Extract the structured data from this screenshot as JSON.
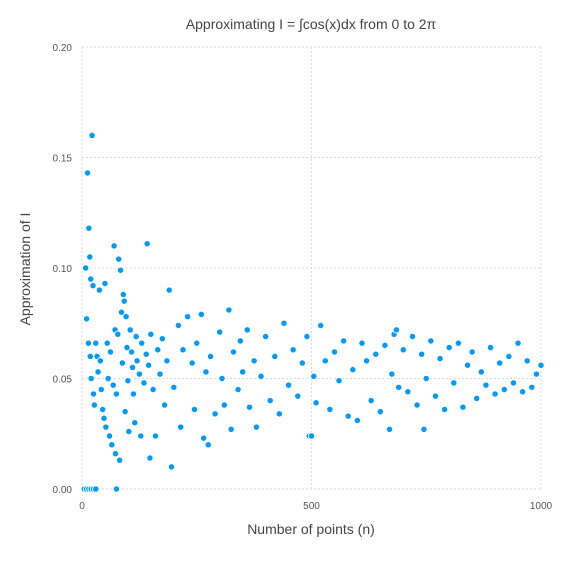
{
  "chart_data": {
    "type": "scatter",
    "title": "Approximating I = ∫cos(x)dx from 0 to 2π",
    "xlabel": "Number of points (n)",
    "ylabel": "Approximation of I",
    "xlim": [
      0,
      1000
    ],
    "ylim": [
      0,
      0.2
    ],
    "x_ticks": [
      0,
      500,
      1000
    ],
    "y_ticks": [
      0.0,
      0.05,
      0.1,
      0.15,
      0.2
    ],
    "x_tick_labels": [
      "0",
      "500",
      "1000"
    ],
    "y_tick_labels": [
      "0.00",
      "0.05",
      "0.10",
      "0.15",
      "0.20"
    ],
    "grid": true,
    "legend": "none",
    "point_color": "#009af9",
    "series": [
      {
        "points": [
          [
            5,
            0.0
          ],
          [
            10,
            0.0
          ],
          [
            15,
            0.0
          ],
          [
            20,
            0.0
          ],
          [
            25,
            0.0
          ],
          [
            30,
            0.0
          ],
          [
            75,
            0.0
          ],
          [
            8,
            0.1
          ],
          [
            12,
            0.143
          ],
          [
            15,
            0.118
          ],
          [
            17,
            0.105
          ],
          [
            19,
            0.095
          ],
          [
            22,
            0.16
          ],
          [
            24,
            0.092
          ],
          [
            10,
            0.077
          ],
          [
            14,
            0.066
          ],
          [
            18,
            0.06
          ],
          [
            20,
            0.05
          ],
          [
            25,
            0.043
          ],
          [
            27,
            0.038
          ],
          [
            30,
            0.066
          ],
          [
            33,
            0.06
          ],
          [
            35,
            0.053
          ],
          [
            38,
            0.09
          ],
          [
            40,
            0.058
          ],
          [
            42,
            0.045
          ],
          [
            45,
            0.036
          ],
          [
            48,
            0.032
          ],
          [
            50,
            0.093
          ],
          [
            52,
            0.028
          ],
          [
            55,
            0.066
          ],
          [
            57,
            0.05
          ],
          [
            60,
            0.024
          ],
          [
            62,
            0.062
          ],
          [
            65,
            0.02
          ],
          [
            68,
            0.047
          ],
          [
            70,
            0.11
          ],
          [
            72,
            0.072
          ],
          [
            73,
            0.016
          ],
          [
            75,
            0.043
          ],
          [
            78,
            0.07
          ],
          [
            80,
            0.104
          ],
          [
            82,
            0.013
          ],
          [
            84,
            0.099
          ],
          [
            86,
            0.08
          ],
          [
            88,
            0.057
          ],
          [
            90,
            0.088
          ],
          [
            92,
            0.085
          ],
          [
            94,
            0.035
          ],
          [
            96,
            0.078
          ],
          [
            98,
            0.064
          ],
          [
            100,
            0.049
          ],
          [
            102,
            0.026
          ],
          [
            105,
            0.072
          ],
          [
            108,
            0.062
          ],
          [
            110,
            0.055
          ],
          [
            112,
            0.043
          ],
          [
            115,
            0.03
          ],
          [
            118,
            0.069
          ],
          [
            120,
            0.058
          ],
          [
            125,
            0.052
          ],
          [
            128,
            0.024
          ],
          [
            130,
            0.066
          ],
          [
            135,
            0.048
          ],
          [
            140,
            0.061
          ],
          [
            142,
            0.111
          ],
          [
            145,
            0.056
          ],
          [
            148,
            0.014
          ],
          [
            150,
            0.07
          ],
          [
            155,
            0.045
          ],
          [
            160,
            0.024
          ],
          [
            165,
            0.063
          ],
          [
            170,
            0.052
          ],
          [
            175,
            0.068
          ],
          [
            180,
            0.038
          ],
          [
            185,
            0.058
          ],
          [
            190,
            0.09
          ],
          [
            195,
            0.01
          ],
          [
            200,
            0.046
          ],
          [
            210,
            0.074
          ],
          [
            215,
            0.028
          ],
          [
            220,
            0.063
          ],
          [
            230,
            0.078
          ],
          [
            240,
            0.057
          ],
          [
            245,
            0.036
          ],
          [
            250,
            0.066
          ],
          [
            260,
            0.079
          ],
          [
            265,
            0.023
          ],
          [
            270,
            0.053
          ],
          [
            275,
            0.02
          ],
          [
            280,
            0.06
          ],
          [
            290,
            0.034
          ],
          [
            300,
            0.071
          ],
          [
            305,
            0.05
          ],
          [
            310,
            0.038
          ],
          [
            320,
            0.081
          ],
          [
            325,
            0.027
          ],
          [
            330,
            0.062
          ],
          [
            340,
            0.045
          ],
          [
            345,
            0.067
          ],
          [
            350,
            0.053
          ],
          [
            360,
            0.072
          ],
          [
            365,
            0.037
          ],
          [
            375,
            0.058
          ],
          [
            380,
            0.028
          ],
          [
            390,
            0.051
          ],
          [
            400,
            0.069
          ],
          [
            410,
            0.04
          ],
          [
            420,
            0.06
          ],
          [
            430,
            0.034
          ],
          [
            440,
            0.075
          ],
          [
            450,
            0.047
          ],
          [
            460,
            0.063
          ],
          [
            470,
            0.042
          ],
          [
            480,
            0.057
          ],
          [
            490,
            0.069
          ],
          [
            495,
            0.024
          ],
          [
            500,
            0.024
          ],
          [
            505,
            0.051
          ],
          [
            510,
            0.039
          ],
          [
            520,
            0.074
          ],
          [
            530,
            0.058
          ],
          [
            540,
            0.036
          ],
          [
            550,
            0.062
          ],
          [
            560,
            0.049
          ],
          [
            570,
            0.067
          ],
          [
            580,
            0.033
          ],
          [
            590,
            0.054
          ],
          [
            600,
            0.031
          ],
          [
            610,
            0.066
          ],
          [
            620,
            0.058
          ],
          [
            630,
            0.04
          ],
          [
            640,
            0.061
          ],
          [
            650,
            0.035
          ],
          [
            660,
            0.065
          ],
          [
            670,
            0.027
          ],
          [
            675,
            0.052
          ],
          [
            680,
            0.07
          ],
          [
            685,
            0.072
          ],
          [
            690,
            0.046
          ],
          [
            700,
            0.063
          ],
          [
            710,
            0.044
          ],
          [
            720,
            0.069
          ],
          [
            730,
            0.038
          ],
          [
            740,
            0.061
          ],
          [
            745,
            0.027
          ],
          [
            750,
            0.05
          ],
          [
            760,
            0.067
          ],
          [
            770,
            0.042
          ],
          [
            780,
            0.059
          ],
          [
            790,
            0.036
          ],
          [
            800,
            0.064
          ],
          [
            810,
            0.048
          ],
          [
            820,
            0.066
          ],
          [
            830,
            0.037
          ],
          [
            840,
            0.056
          ],
          [
            850,
            0.062
          ],
          [
            860,
            0.041
          ],
          [
            870,
            0.053
          ],
          [
            880,
            0.047
          ],
          [
            890,
            0.064
          ],
          [
            900,
            0.043
          ],
          [
            910,
            0.057
          ],
          [
            920,
            0.045
          ],
          [
            930,
            0.06
          ],
          [
            940,
            0.048
          ],
          [
            950,
            0.066
          ],
          [
            960,
            0.044
          ],
          [
            970,
            0.058
          ],
          [
            980,
            0.046
          ],
          [
            990,
            0.052
          ],
          [
            1000,
            0.056
          ]
        ]
      }
    ]
  }
}
